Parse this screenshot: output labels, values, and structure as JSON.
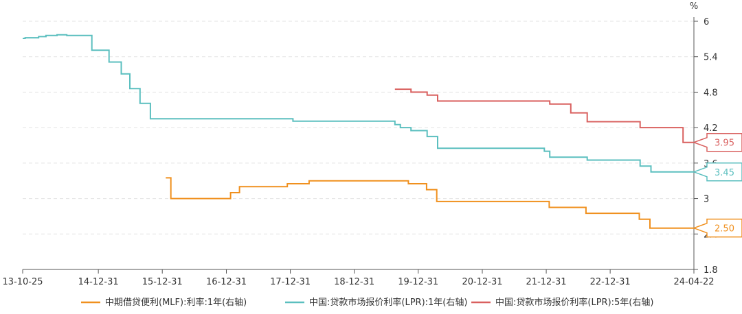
{
  "chart_data": {
    "type": "line",
    "y_unit": "%",
    "yaxis_position": "right",
    "ylim": [
      1.8,
      6
    ],
    "yticks": [
      "6",
      "5.4",
      "4.8",
      "4.2",
      "3.6",
      "3",
      "2.4",
      "1.8"
    ],
    "xlim": [
      "2013-10-25",
      "2024-04-22"
    ],
    "xticks": [
      {
        "label": "13-10-25",
        "date": "2013-10-25"
      },
      {
        "label": "14-12-31",
        "date": "2014-12-31"
      },
      {
        "label": "15-12-31",
        "date": "2015-12-31"
      },
      {
        "label": "16-12-31",
        "date": "2016-12-31"
      },
      {
        "label": "17-12-31",
        "date": "2017-12-31"
      },
      {
        "label": "18-12-31",
        "date": "2018-12-31"
      },
      {
        "label": "19-12-31",
        "date": "2019-12-31"
      },
      {
        "label": "20-12-31",
        "date": "2020-12-31"
      },
      {
        "label": "21-12-31",
        "date": "2021-12-31"
      },
      {
        "label": "22-12-31",
        "date": "2022-12-31"
      },
      {
        "label": "24-04-22",
        "date": "2024-04-22"
      }
    ],
    "grid": true,
    "legend_position": "bottom",
    "series": [
      {
        "name": "中期借贷便利(MLF):利率:1年(右轴)",
        "color": "#f0901e",
        "end_label": "2.50",
        "points": [
          [
            "2016-01-20",
            3.35
          ],
          [
            "2016-02-18",
            3.0
          ],
          [
            "2016-12-22",
            3.0
          ],
          [
            "2017-01-24",
            3.1
          ],
          [
            "2017-03-16",
            3.2
          ],
          [
            "2017-12-14",
            3.25
          ],
          [
            "2018-04-17",
            3.3
          ],
          [
            "2019-10-17",
            3.3
          ],
          [
            "2019-11-05",
            3.25
          ],
          [
            "2020-02-17",
            3.15
          ],
          [
            "2020-04-15",
            2.95
          ],
          [
            "2022-01-17",
            2.85
          ],
          [
            "2022-08-15",
            2.75
          ],
          [
            "2023-06-15",
            2.65
          ],
          [
            "2023-08-15",
            2.5
          ],
          [
            "2024-04-22",
            2.5
          ]
        ]
      },
      {
        "name": "中国:贷款市场报价利率(LPR):1年(右轴)",
        "color": "#5bbfbf",
        "end_label": "3.45",
        "points": [
          [
            "2013-10-25",
            5.71
          ],
          [
            "2013-11-08",
            5.72
          ],
          [
            "2014-01-24",
            5.74
          ],
          [
            "2014-03-07",
            5.76
          ],
          [
            "2014-05-09",
            5.77
          ],
          [
            "2014-07-04",
            5.76
          ],
          [
            "2014-11-24",
            5.51
          ],
          [
            "2015-03-02",
            5.31
          ],
          [
            "2015-05-11",
            5.11
          ],
          [
            "2015-06-29",
            4.86
          ],
          [
            "2015-08-26",
            4.61
          ],
          [
            "2015-10-24",
            4.35
          ],
          [
            "2017-12-29",
            4.35
          ],
          [
            "2018-01-15",
            4.31
          ],
          [
            "2019-08-20",
            4.31
          ],
          [
            "2019-08-20",
            4.25
          ],
          [
            "2019-09-20",
            4.2
          ],
          [
            "2019-11-20",
            4.15
          ],
          [
            "2020-02-20",
            4.05
          ],
          [
            "2020-04-20",
            3.85
          ],
          [
            "2021-12-20",
            3.8
          ],
          [
            "2022-01-20",
            3.7
          ],
          [
            "2022-08-22",
            3.65
          ],
          [
            "2023-06-20",
            3.55
          ],
          [
            "2023-08-21",
            3.45
          ],
          [
            "2024-04-22",
            3.45
          ]
        ]
      },
      {
        "name": "中国:贷款市场报价利率(LPR):5年(右轴)",
        "color": "#d9605f",
        "end_label": "3.95",
        "points": [
          [
            "2019-08-20",
            4.85
          ],
          [
            "2019-11-20",
            4.8
          ],
          [
            "2020-02-20",
            4.75
          ],
          [
            "2020-04-20",
            4.65
          ],
          [
            "2022-01-20",
            4.6
          ],
          [
            "2022-05-20",
            4.45
          ],
          [
            "2022-08-22",
            4.3
          ],
          [
            "2023-06-20",
            4.2
          ],
          [
            "2024-02-20",
            3.95
          ],
          [
            "2024-04-22",
            3.95
          ]
        ]
      }
    ]
  }
}
